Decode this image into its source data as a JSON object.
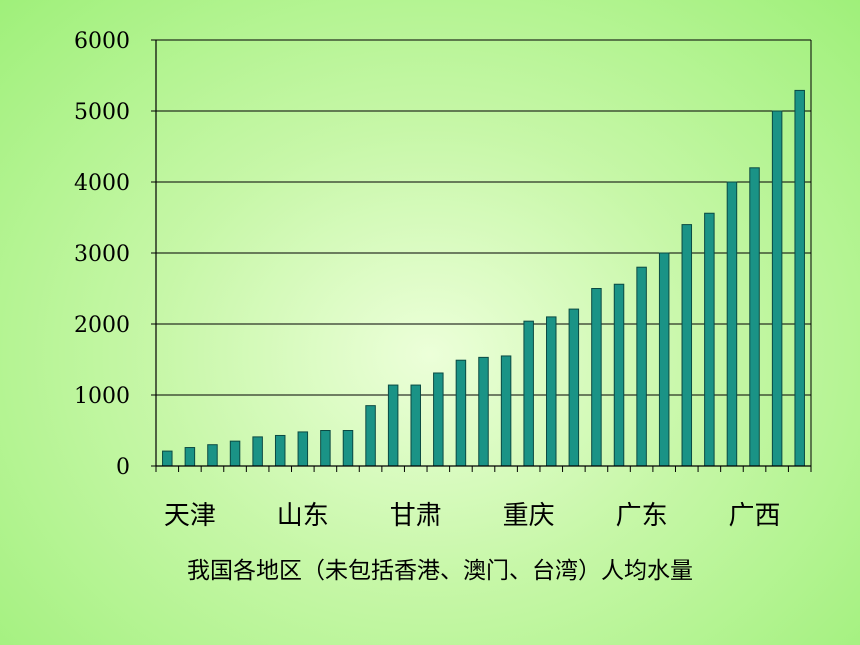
{
  "chart_data": {
    "type": "bar",
    "title": "我国各地区（未包括香港、澳门、台湾）人均水量",
    "xlabel": "",
    "ylabel": "",
    "ylim": [
      0,
      6000
    ],
    "yticks": [
      0,
      1000,
      2000,
      3000,
      4000,
      5000,
      6000
    ],
    "grid": true,
    "bar_color": "#1a9386",
    "category_labels": [
      {
        "index": 1,
        "label": "天津"
      },
      {
        "index": 6,
        "label": "山东"
      },
      {
        "index": 11,
        "label": "甘肃"
      },
      {
        "index": 16,
        "label": "重庆"
      },
      {
        "index": 21,
        "label": "广东"
      },
      {
        "index": 26,
        "label": "广西"
      }
    ],
    "values": [
      210,
      260,
      300,
      350,
      410,
      430,
      480,
      500,
      500,
      850,
      1140,
      1140,
      1310,
      1490,
      1530,
      1550,
      2040,
      2100,
      2210,
      2500,
      2560,
      2800,
      3000,
      3400,
      3560,
      4000,
      4200,
      5000,
      5290
    ]
  }
}
